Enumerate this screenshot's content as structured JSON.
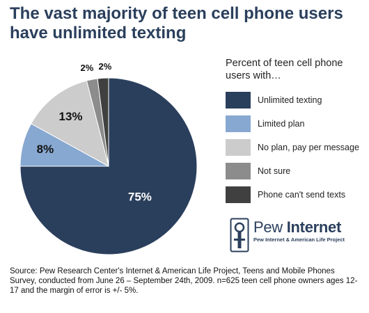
{
  "title": "The vast majority of teen cell phone users have unlimited texting",
  "legend_title": "Percent of teen cell phone users with…",
  "logo": {
    "name_light": "Pew ",
    "name_bold": "Internet",
    "subtitle": "Pew Internet & American Life Project"
  },
  "source": "Source: Pew Research Center's Internet & American Life Project, Teens and Mobile Phones Survey, conducted from June 26 – September 24th, 2009. n=625 teen cell phone owners ages 12-17 and the margin of error is +/- 5%.",
  "chart_data": {
    "type": "pie",
    "title": "The vast majority of teen cell phone users have unlimited texting",
    "legend_title": "Percent of teen cell phone users with…",
    "legend_position": "right",
    "slices": [
      {
        "label": "Unlimited texting",
        "value": 75,
        "display": "75%",
        "color": "#2a3f5c",
        "label_color": "#ffffff"
      },
      {
        "label": "Limited plan",
        "value": 8,
        "display": "8%",
        "color": "#87a8d0",
        "label_color": "#111111"
      },
      {
        "label": "No plan, pay per message",
        "value": 13,
        "display": "13%",
        "color": "#cccccc",
        "label_color": "#111111"
      },
      {
        "label": "Not sure",
        "value": 2,
        "display": "2%",
        "color": "#8c8c8c",
        "label_color": "#111111"
      },
      {
        "label": "Phone can't send texts",
        "value": 2,
        "display": "2%",
        "color": "#404040",
        "label_color": "#111111"
      }
    ]
  }
}
